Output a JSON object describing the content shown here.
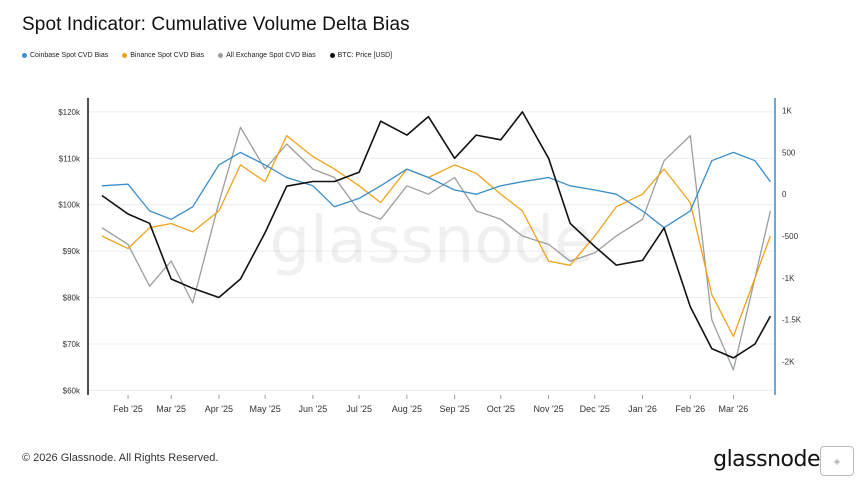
{
  "title": "Spot Indicator: Cumulative Volume Delta Bias",
  "legend": [
    {
      "label": "Coinbase Spot CVD Bias",
      "color": "#3a8ec9"
    },
    {
      "label": "Binance Spot CVD Bias",
      "color": "#f0a21c"
    },
    {
      "label": "All Exchange Spot CVD Bias",
      "color": "#9a9e9e"
    },
    {
      "label": "BTC: Price [USD]",
      "color": "#111111"
    }
  ],
  "footer": "© 2026 Glassnode. All Rights Reserved.",
  "brand": "glassnode",
  "watermark": "glassnode",
  "chart_data": {
    "type": "line",
    "x": [
      "2025-01-15",
      "2025-02-01",
      "2025-02-15",
      "2025-03-01",
      "2025-03-15",
      "2025-04-01",
      "2025-04-15",
      "2025-05-01",
      "2025-05-15",
      "2025-06-01",
      "2025-06-15",
      "2025-07-01",
      "2025-07-15",
      "2025-08-01",
      "2025-08-15",
      "2025-09-01",
      "2025-09-15",
      "2025-10-01",
      "2025-10-15",
      "2025-11-01",
      "2025-11-15",
      "2025-12-01",
      "2025-12-15",
      "2026-01-01",
      "2026-01-15",
      "2026-02-01",
      "2026-02-15",
      "2026-03-01",
      "2026-03-15",
      "2026-03-25"
    ],
    "x_tick_labels": [
      "Feb '25",
      "Mar '25",
      "Apr '25",
      "May '25",
      "Jun '25",
      "Jul '25",
      "Aug '25",
      "Sep '25",
      "Oct '25",
      "Nov '25",
      "Dec '25",
      "Jan '26",
      "Feb '26",
      "Mar '26"
    ],
    "x_tick_dates": [
      "2025-02-01",
      "2025-03-01",
      "2025-04-01",
      "2025-05-01",
      "2025-06-01",
      "2025-07-01",
      "2025-08-01",
      "2025-09-01",
      "2025-10-01",
      "2025-11-01",
      "2025-12-01",
      "2026-01-01",
      "2026-02-01",
      "2026-03-01"
    ],
    "y_left": {
      "ticks": [
        60000,
        70000,
        80000,
        90000,
        100000,
        110000,
        120000
      ],
      "tick_labels": [
        "$60k",
        "$70k",
        "$80k",
        "$90k",
        "$100k",
        "$110k",
        "$120k"
      ],
      "lim": [
        59000,
        123000
      ]
    },
    "y_right": {
      "ticks": [
        -2000,
        -1500,
        -1000,
        -500,
        0,
        500,
        1000
      ],
      "tick_labels": [
        "-2K",
        "-1.5K",
        "-1K",
        "-500",
        "0",
        "500",
        "1K"
      ],
      "lim": [
        -2400,
        1150
      ]
    },
    "series": [
      {
        "name": "BTC: Price [USD]",
        "axis": "left",
        "color": "#111111",
        "values": [
          102000,
          98000,
          96000,
          84000,
          82000,
          80000,
          84000,
          94000,
          104000,
          105000,
          105000,
          107000,
          118000,
          115000,
          119000,
          110000,
          115000,
          114000,
          120000,
          110000,
          96000,
          91000,
          87000,
          88000,
          95000,
          78000,
          69000,
          67000,
          70000,
          76000
        ]
      },
      {
        "name": "Coinbase Spot CVD Bias",
        "axis": "right",
        "color": "#3a8ec9",
        "values": [
          100,
          120,
          -200,
          -300,
          -150,
          350,
          500,
          350,
          200,
          100,
          -150,
          -50,
          100,
          300,
          200,
          50,
          0,
          100,
          150,
          200,
          100,
          50,
          0,
          -200,
          -400,
          -200,
          400,
          500,
          400,
          150
        ]
      },
      {
        "name": "Binance Spot CVD Bias",
        "axis": "right",
        "color": "#f0a21c",
        "values": [
          -500,
          -650,
          -400,
          -350,
          -450,
          -200,
          350,
          150,
          700,
          450,
          300,
          100,
          -100,
          300,
          200,
          350,
          250,
          0,
          -200,
          -800,
          -850,
          -500,
          -150,
          0,
          300,
          -100,
          -1200,
          -1700,
          -1000,
          -500
        ]
      },
      {
        "name": "All Exchange Spot CVD Bias",
        "axis": "right",
        "color": "#9a9e9e",
        "values": [
          -400,
          -600,
          -1100,
          -800,
          -1300,
          -100,
          800,
          300,
          600,
          300,
          200,
          -200,
          -300,
          100,
          0,
          200,
          -200,
          -300,
          -500,
          -600,
          -800,
          -700,
          -500,
          -300,
          400,
          700,
          -1500,
          -2100,
          -1000,
          -200
        ]
      }
    ],
    "grid": "horizontal",
    "legend_position": "top-left"
  }
}
